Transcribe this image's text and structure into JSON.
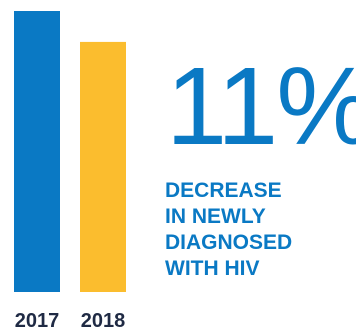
{
  "stat": {
    "value": "11%",
    "caption_lines": [
      "DECREASE",
      "IN NEWLY",
      "DIAGNOSED",
      "WITH HIV"
    ]
  },
  "colors": {
    "bar_2017": "#0a79c4",
    "bar_2018": "#fbbd2e",
    "text_blue": "#0a79c4",
    "label_dark": "#1f2a44"
  },
  "chart_data": {
    "type": "bar",
    "categories": [
      "2017",
      "2018"
    ],
    "values": [
      100,
      89
    ],
    "ylim": [
      0,
      100
    ],
    "grid": false,
    "legend": "none"
  }
}
